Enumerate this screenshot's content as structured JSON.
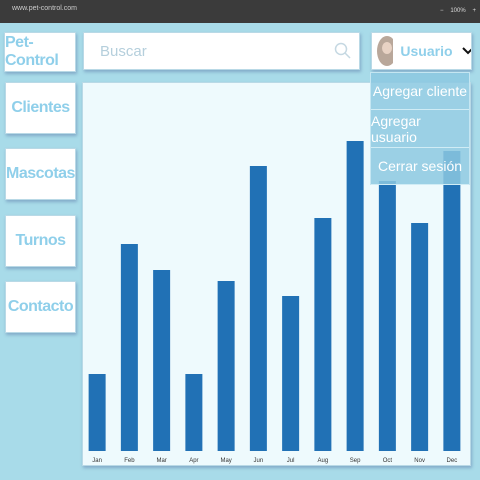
{
  "browser": {
    "url": "www.pet-control.com",
    "zoom": "100%"
  },
  "header": {
    "logo": "Pet-Control",
    "search_placeholder": "Buscar",
    "user": "Usuario"
  },
  "user_menu": [
    "Agregar cliente",
    "Agregar usuario",
    "Cerrar sesión"
  ],
  "sidebar": [
    "Clientes",
    "Mascotas",
    "Turnos",
    "Contacto"
  ],
  "chart_data": {
    "type": "bar",
    "color": "#2171b5",
    "categories": [
      "Jan",
      "Feb",
      "Mar",
      "Apr",
      "May",
      "Jun",
      "Jul",
      "Aug",
      "Sep",
      "Oct",
      "Nov",
      "Dec"
    ],
    "values": [
      77,
      207,
      181,
      77,
      170,
      285,
      155,
      233,
      310,
      270,
      228,
      300
    ]
  }
}
